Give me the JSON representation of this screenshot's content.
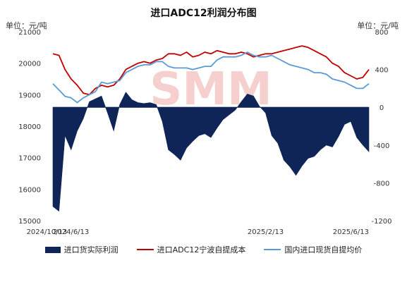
{
  "chart_data": {
    "type": "line",
    "title": "进口ADC12利润分布图",
    "unit_left": "单位：元/吨",
    "unit_right": "单位：元/吨",
    "watermark": "SMM",
    "x": [
      "2024/6/13",
      "2024/6/20",
      "2024/6/27",
      "2024/7/4",
      "2024/7/11",
      "2024/7/18",
      "2024/7/25",
      "2024/8/1",
      "2024/8/8",
      "2024/8/15",
      "2024/8/22",
      "2024/8/29",
      "2024/9/5",
      "2024/9/12",
      "2024/9/19",
      "2024/9/26",
      "2024/10/3",
      "2024/10/10",
      "2024/10/17",
      "2024/10/24",
      "2024/10/31",
      "2024/11/7",
      "2024/11/14",
      "2024/11/21",
      "2024/11/28",
      "2024/12/5",
      "2024/12/12",
      "2024/12/19",
      "2024/12/26",
      "2025/1/2",
      "2025/1/9",
      "2025/1/16",
      "2025/1/23",
      "2025/1/30",
      "2025/2/6",
      "2025/2/13",
      "2025/2/20",
      "2025/2/27",
      "2025/3/6",
      "2025/3/13",
      "2025/3/20",
      "2025/3/27",
      "2025/4/3",
      "2025/4/10",
      "2025/4/17",
      "2025/4/24",
      "2025/5/1",
      "2025/5/8",
      "2025/5/15",
      "2025/5/22",
      "2025/5/29",
      "2025/6/5",
      "2025/6/13"
    ],
    "x_ticks": [
      "2024/6/13",
      "2024/10/13",
      "2025/2/13",
      "2025/6/13"
    ],
    "y_left": {
      "min": 15000,
      "max": 21000,
      "ticks": [
        15000,
        16000,
        17000,
        18000,
        19000,
        20000,
        21000
      ]
    },
    "y_right": {
      "min": -1200,
      "max": 800,
      "ticks": [
        -1200,
        -800,
        -400,
        0,
        400,
        800
      ]
    },
    "series": [
      {
        "name": "进口货实际利润",
        "kind": "area",
        "axis": "right",
        "color": "#0f2557",
        "values": [
          -1050,
          -1100,
          -300,
          -450,
          -250,
          -120,
          60,
          90,
          120,
          -60,
          -250,
          30,
          160,
          80,
          50,
          40,
          50,
          30,
          -150,
          -450,
          -500,
          -560,
          -430,
          -360,
          -300,
          -280,
          -320,
          -220,
          -130,
          -80,
          -30,
          60,
          140,
          120,
          10,
          -60,
          -300,
          -380,
          -560,
          -630,
          -720,
          -620,
          -540,
          -520,
          -450,
          -400,
          -420,
          -310,
          -180,
          -150,
          -320,
          -400,
          -470
        ]
      },
      {
        "name": "进口ADC12宁波自提成本",
        "kind": "line",
        "axis": "left",
        "color": "#c00000",
        "values": [
          20300,
          20250,
          19800,
          19500,
          19300,
          19050,
          19000,
          19200,
          19300,
          19250,
          19300,
          19500,
          19800,
          19900,
          20000,
          20050,
          20000,
          20100,
          20150,
          20300,
          20300,
          20250,
          20350,
          20200,
          20250,
          20350,
          20300,
          20400,
          20350,
          20300,
          20300,
          20350,
          20300,
          20200,
          20250,
          20300,
          20300,
          20350,
          20400,
          20450,
          20500,
          20550,
          20500,
          20400,
          20300,
          20200,
          20000,
          19900,
          19700,
          19600,
          19500,
          19550,
          19800
        ]
      },
      {
        "name": "国内进口现货自提均价",
        "kind": "line",
        "axis": "left",
        "color": "#5b9bd5",
        "values": [
          19350,
          19150,
          18950,
          18900,
          18750,
          18900,
          19000,
          19100,
          19400,
          19350,
          19400,
          19450,
          19700,
          19800,
          19900,
          19950,
          19950,
          20050,
          20050,
          19900,
          19850,
          19850,
          19850,
          19800,
          19850,
          19900,
          19900,
          20100,
          20200,
          20200,
          20200,
          20250,
          20350,
          20250,
          20200,
          20200,
          20250,
          20150,
          20050,
          19950,
          19900,
          19850,
          19800,
          19700,
          19700,
          19650,
          19500,
          19450,
          19400,
          19300,
          19200,
          19200,
          19350
        ]
      }
    ],
    "legend_position": "bottom",
    "grid": false
  }
}
